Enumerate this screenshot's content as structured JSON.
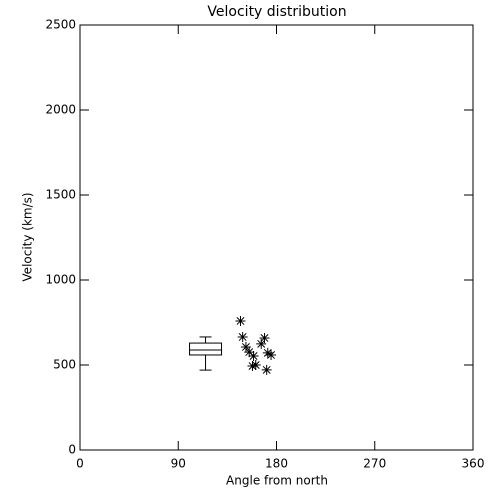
{
  "chart_data": {
    "type": "scatter",
    "title": "Velocity distribution",
    "x_label": "Angle from north",
    "y_label": "Velocity (km/s)",
    "xlim": [
      0,
      360
    ],
    "xticks": [
      0,
      90,
      180,
      270,
      360
    ],
    "ylim": [
      0,
      2500
    ],
    "yticks": [
      0,
      500,
      1000,
      1500,
      2000,
      2500
    ],
    "color": "#000000",
    "x": [
      147,
      149,
      152,
      155,
      159,
      161,
      158,
      166,
      169,
      172,
      175,
      171
    ],
    "y": [
      759,
      665,
      606,
      576,
      553,
      500,
      494,
      624,
      659,
      571,
      559,
      471
    ],
    "box": {
      "x": 115,
      "whisker_low": 470,
      "q1": 559,
      "median": 588,
      "q3": 629,
      "whisker_high": 665
    }
  }
}
